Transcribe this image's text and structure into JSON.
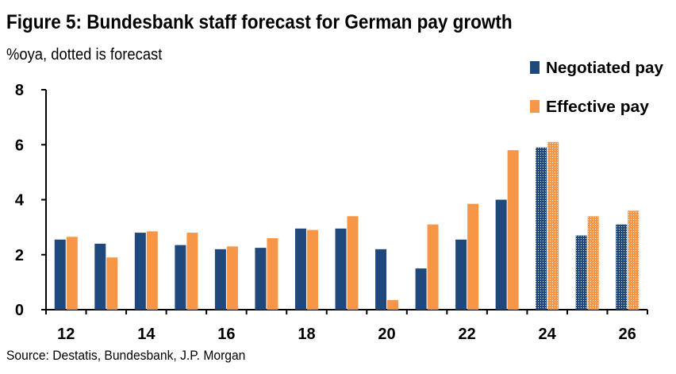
{
  "title": "Figure 5: Bundesbank staff forecast for German pay growth",
  "subtitle": "%oya, dotted is forecast",
  "source": "Source: Destatis, Bundesbank, J.P. Morgan",
  "colors": {
    "negotiated": "#1F497D",
    "effective": "#F79646"
  },
  "chart_data": {
    "type": "bar",
    "categories": [
      "12",
      "13",
      "14",
      "15",
      "16",
      "17",
      "18",
      "19",
      "20",
      "21",
      "22",
      "23",
      "24",
      "25",
      "26"
    ],
    "x_tick_labels": [
      "12",
      "",
      "14",
      "",
      "16",
      "",
      "18",
      "",
      "20",
      "",
      "22",
      "",
      "24",
      "",
      "26"
    ],
    "series": [
      {
        "name": "Negotiated pay",
        "values": [
          2.55,
          2.4,
          2.8,
          2.35,
          2.2,
          2.25,
          2.95,
          2.95,
          2.2,
          1.5,
          2.55,
          4.0,
          5.9,
          2.7,
          3.1
        ]
      },
      {
        "name": "Effective pay",
        "values": [
          2.65,
          1.9,
          2.85,
          2.8,
          2.3,
          2.6,
          2.9,
          3.4,
          0.35,
          3.1,
          3.85,
          5.8,
          6.1,
          3.4,
          3.6
        ]
      }
    ],
    "forecast_categories": [
      "24",
      "25",
      "26"
    ],
    "ylim": [
      0,
      8
    ],
    "yticks": [
      0,
      2,
      4,
      6,
      8
    ],
    "xlabel": "",
    "ylabel": "",
    "grid": false,
    "legend_position": "top-right"
  }
}
